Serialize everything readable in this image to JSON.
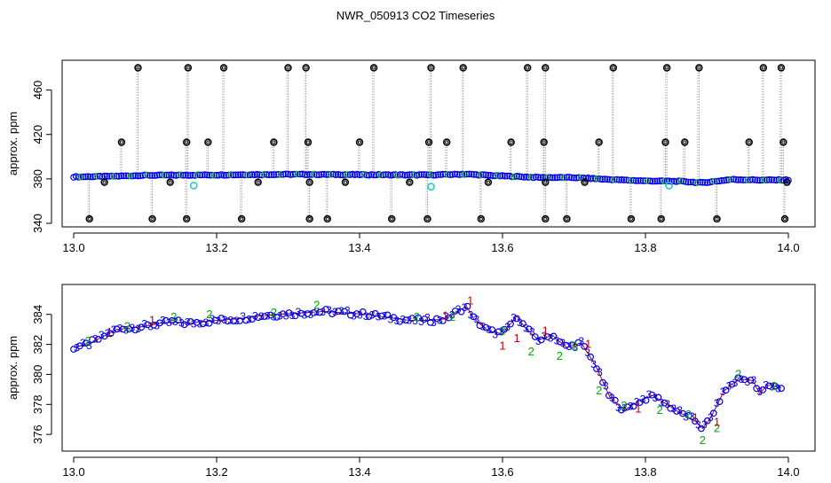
{
  "title": "NWR_050913  CO2 Timeseries",
  "chart_data": [
    {
      "type": "scatter",
      "panel": "top",
      "xlabel": "",
      "ylabel": "approx. ppm",
      "xlim": [
        13.0,
        14.0
      ],
      "ylim": [
        340,
        482
      ],
      "xticks": [
        "13.0",
        "13.2",
        "13.4",
        "13.6",
        "13.8",
        "14.0"
      ],
      "yticks": [
        "340",
        "380",
        "420",
        "460"
      ],
      "grid": false,
      "baseline": [
        [
          13.0,
          381.8
        ],
        [
          13.05,
          382.3
        ],
        [
          13.1,
          383.2
        ],
        [
          13.15,
          383.4
        ],
        [
          13.2,
          383.6
        ],
        [
          13.25,
          383.9
        ],
        [
          13.3,
          384.1
        ],
        [
          13.35,
          384.0
        ],
        [
          13.4,
          383.8
        ],
        [
          13.45,
          383.6
        ],
        [
          13.5,
          383.6
        ],
        [
          13.55,
          384.3
        ],
        [
          13.6,
          382.6
        ],
        [
          13.65,
          381.3
        ],
        [
          13.7,
          381.2
        ],
        [
          13.75,
          379.5
        ],
        [
          13.8,
          378.2
        ],
        [
          13.85,
          377.8
        ],
        [
          13.88,
          376.5
        ],
        [
          13.92,
          379.5
        ],
        [
          13.96,
          379.0
        ],
        [
          14.0,
          379.0
        ]
      ],
      "outliers_high": [
        13.09,
        13.16,
        13.21,
        13.3,
        13.325,
        13.42,
        13.5,
        13.545,
        13.635,
        13.66,
        13.755,
        13.83,
        13.875,
        13.965,
        13.99
      ],
      "outliers_mid": [
        13.067,
        13.158,
        13.188,
        13.28,
        13.328,
        13.4,
        13.497,
        13.522,
        13.612,
        13.658,
        13.735,
        13.828,
        13.855,
        13.945,
        13.993
      ],
      "outliers_low": [
        13.022,
        13.11,
        13.158,
        13.235,
        13.33,
        13.355,
        13.445,
        13.495,
        13.57,
        13.66,
        13.69,
        13.78,
        13.822,
        13.9,
        13.995
      ],
      "outliers_near": [
        13.043,
        13.135,
        13.258,
        13.33,
        13.38,
        13.47,
        13.58,
        13.66,
        13.715,
        13.998
      ],
      "flagged_points": [
        [
          13.168,
          374
        ],
        [
          13.5,
          373
        ],
        [
          13.833,
          374
        ]
      ],
      "colors": {
        "series_point": "#0000ee",
        "series_point_alt": "#00bb00",
        "outlier": "#000000",
        "flagged": "#22cccc",
        "guide": "#9a9a9a"
      }
    },
    {
      "type": "scatter",
      "panel": "bottom",
      "xlabel": "",
      "ylabel": "approx. ppm",
      "xlim": [
        13.0,
        14.0
      ],
      "ylim": [
        375.3,
        385.7
      ],
      "xticks": [
        "13.0",
        "13.2",
        "13.4",
        "13.6",
        "13.8",
        "14.0"
      ],
      "yticks": [
        "376",
        "378",
        "380",
        "382",
        "384"
      ],
      "grid": false,
      "series": [
        {
          "marker": "3",
          "color": "#0000ee",
          "points": [
            [
              13.0,
              381.8
            ],
            [
              13.02,
              382.0
            ],
            [
              13.04,
              382.5
            ],
            [
              13.06,
              383.0
            ],
            [
              13.08,
              383.1
            ],
            [
              13.1,
              383.2
            ],
            [
              13.12,
              383.4
            ],
            [
              13.14,
              383.5
            ],
            [
              13.16,
              383.4
            ],
            [
              13.18,
              383.5
            ],
            [
              13.2,
              383.6
            ],
            [
              13.23,
              383.7
            ],
            [
              13.26,
              383.9
            ],
            [
              13.29,
              384.0
            ],
            [
              13.32,
              384.1
            ],
            [
              13.35,
              384.2
            ],
            [
              13.38,
              384.1
            ],
            [
              13.41,
              384.0
            ],
            [
              13.44,
              383.8
            ],
            [
              13.47,
              383.6
            ],
            [
              13.5,
              383.6
            ],
            [
              13.52,
              383.7
            ],
            [
              13.54,
              384.3
            ],
            [
              13.55,
              384.5
            ],
            [
              13.56,
              383.7
            ],
            [
              13.58,
              382.9
            ],
            [
              13.6,
              382.7
            ],
            [
              13.62,
              383.9
            ],
            [
              13.63,
              383.2
            ],
            [
              13.65,
              382.3
            ],
            [
              13.67,
              382.6
            ],
            [
              13.69,
              381.8
            ],
            [
              13.71,
              382.1
            ],
            [
              13.73,
              380.6
            ],
            [
              13.75,
              378.5
            ],
            [
              13.77,
              377.6
            ],
            [
              13.79,
              378.2
            ],
            [
              13.81,
              378.6
            ],
            [
              13.83,
              378.0
            ],
            [
              13.85,
              377.4
            ],
            [
              13.87,
              376.9
            ],
            [
              13.88,
              376.4
            ],
            [
              13.89,
              377.0
            ],
            [
              13.91,
              378.9
            ],
            [
              13.93,
              379.7
            ],
            [
              13.95,
              379.6
            ],
            [
              13.96,
              378.7
            ],
            [
              13.97,
              379.3
            ],
            [
              13.99,
              379.1
            ]
          ]
        },
        {
          "marker": "2",
          "color": "#00aa00",
          "points": [
            [
              13.02,
              382.2
            ],
            [
              13.075,
              383.2
            ],
            [
              13.14,
              383.8
            ],
            [
              13.19,
              384.0
            ],
            [
              13.28,
              384.1
            ],
            [
              13.34,
              384.6
            ],
            [
              13.48,
              383.8
            ],
            [
              13.53,
              383.8
            ],
            [
              13.6,
              382.9
            ],
            [
              13.64,
              381.5
            ],
            [
              13.68,
              381.2
            ],
            [
              13.7,
              381.9
            ],
            [
              13.735,
              378.9
            ],
            [
              13.77,
              377.9
            ],
            [
              13.82,
              377.6
            ],
            [
              13.86,
              377.3
            ],
            [
              13.88,
              375.6
            ],
            [
              13.9,
              376.4
            ],
            [
              13.93,
              380.0
            ],
            [
              13.98,
              379.2
            ]
          ]
        },
        {
          "marker": "1",
          "color": "#cc0000",
          "points": [
            [
              13.05,
              382.8
            ],
            [
              13.11,
              383.6
            ],
            [
              13.52,
              383.9
            ],
            [
              13.555,
              384.9
            ],
            [
              13.6,
              381.9
            ],
            [
              13.62,
              382.4
            ],
            [
              13.66,
              382.9
            ],
            [
              13.72,
              382.0
            ],
            [
              13.79,
              377.7
            ],
            [
              13.87,
              377.1
            ],
            [
              13.9,
              376.8
            ]
          ]
        }
      ]
    }
  ]
}
